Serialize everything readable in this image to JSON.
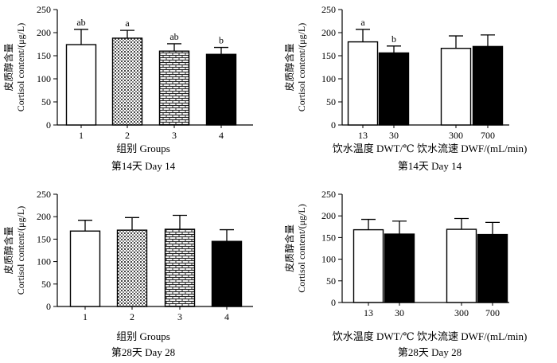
{
  "chart_data": [
    {
      "type": "bar",
      "ylabel_cn": "皮质醇含量",
      "ylabel_en": "Cortisol content/(μg/L)",
      "ylim": [
        0,
        250
      ],
      "yticks": [
        "0",
        "50",
        "100",
        "150",
        "200",
        "250"
      ],
      "categories": [
        "1",
        "2",
        "3",
        "4"
      ],
      "values": [
        174,
        188,
        160,
        153
      ],
      "errors": [
        33,
        17,
        16,
        15
      ],
      "letters": [
        "ab",
        "a",
        "ab",
        "b"
      ],
      "fills": [
        "white",
        "grid",
        "brick",
        "black"
      ],
      "xlabel": "组别  Groups",
      "caption": "第14天  Day 14"
    },
    {
      "type": "bar",
      "ylabel_cn": "皮质醇含量",
      "ylabel_en": "Cortisol content/(μg/L)",
      "ylim": [
        0,
        250
      ],
      "yticks": [
        "0",
        "50",
        "100",
        "150",
        "200",
        "250"
      ],
      "categories": [
        "13",
        "30",
        "300",
        "700"
      ],
      "values": [
        180,
        156,
        166,
        170
      ],
      "errors": [
        27,
        15,
        27,
        25
      ],
      "letters": [
        "a",
        "b",
        "",
        ""
      ],
      "fills": [
        "white",
        "black",
        "white",
        "black"
      ],
      "xlabel": "饮水温度  DWT/℃  饮水流速  DWF/(mL/min)",
      "caption": "第14天  Day 14"
    },
    {
      "type": "bar",
      "ylabel_cn": "皮质醇含量",
      "ylabel_en": "Cortisol content/(μg/L)",
      "ylim": [
        0,
        250
      ],
      "yticks": [
        "0",
        "50",
        "100",
        "150",
        "200",
        "250"
      ],
      "categories": [
        "1",
        "2",
        "3",
        "4"
      ],
      "values": [
        168,
        170,
        172,
        145
      ],
      "errors": [
        24,
        28,
        31,
        26
      ],
      "letters": [
        "",
        "",
        "",
        ""
      ],
      "fills": [
        "white",
        "grid",
        "brick",
        "black"
      ],
      "xlabel": "组别  Groups",
      "caption": "第28天  Day 28"
    },
    {
      "type": "bar",
      "ylabel_cn": "皮质醇含量",
      "ylabel_en": "Cortisol content/(μg/L)",
      "ylim": [
        0,
        250
      ],
      "yticks": [
        "0",
        "50",
        "100",
        "150",
        "200",
        "250"
      ],
      "categories": [
        "13",
        "30",
        "300",
        "700"
      ],
      "values": [
        168,
        158,
        169,
        157
      ],
      "errors": [
        24,
        30,
        25,
        28
      ],
      "letters": [
        "",
        "",
        "",
        ""
      ],
      "fills": [
        "white",
        "black",
        "white",
        "black"
      ],
      "xlabel": "饮水温度  DWT/℃  饮水流速  DWF/(mL/min)",
      "caption": "第28天  Day 28"
    }
  ]
}
